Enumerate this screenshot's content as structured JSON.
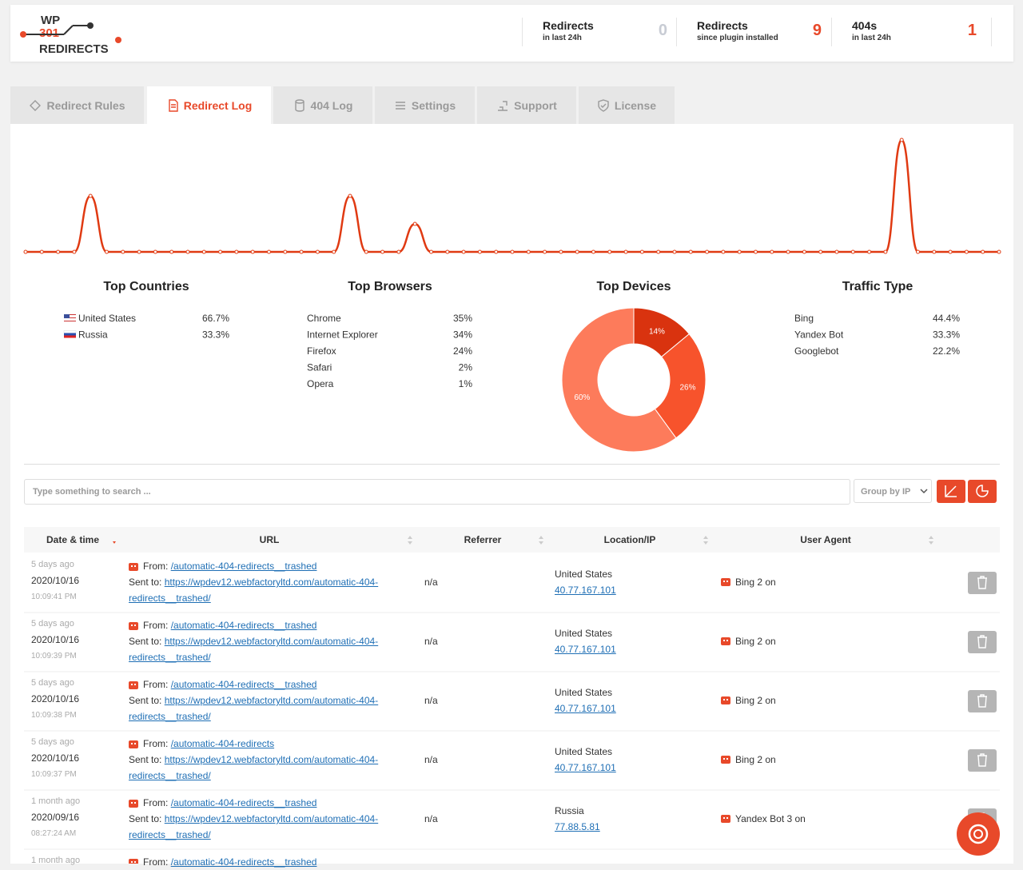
{
  "header": {
    "logo": [
      "WP",
      "301",
      "REDIRECTS"
    ],
    "stats": [
      {
        "label": "Redirects",
        "sublabel": "in last 24h",
        "value": "0"
      },
      {
        "label": "Redirects",
        "sublabel": "since plugin installed",
        "value": "9"
      },
      {
        "label": "404s",
        "sublabel": "in last 24h",
        "value": "1"
      }
    ]
  },
  "tabs": {
    "items": [
      "Redirect Rules",
      "Redirect Log",
      "404 Log",
      "Settings",
      "Support",
      "License"
    ],
    "active": 1
  },
  "chart_data": [
    {
      "type": "line",
      "color": "#e03a12",
      "values": [
        0,
        0,
        0,
        0,
        2,
        0,
        0,
        0,
        0,
        0,
        0,
        0,
        0,
        0,
        0,
        0,
        0,
        0,
        0,
        0,
        2,
        0,
        0,
        0,
        1,
        0,
        0,
        0,
        0,
        0,
        0,
        0,
        0,
        0,
        0,
        0,
        0,
        0,
        0,
        0,
        0,
        0,
        0,
        0,
        0,
        0,
        0,
        0,
        0,
        0,
        0,
        0,
        0,
        0,
        4,
        0,
        0,
        0,
        0,
        0,
        0
      ]
    },
    {
      "type": "pie",
      "title": "Top Devices",
      "values": [
        14,
        26,
        60
      ],
      "value_labels": [
        "14%",
        "26%",
        "60%"
      ],
      "colors": [
        "#d9330f",
        "#f7532c",
        "#fd7b5b"
      ]
    }
  ],
  "stats": [
    {
      "title": "Top Countries",
      "rows": [
        [
          "United States",
          "66.7%"
        ],
        [
          "Russia",
          "33.3%"
        ]
      ]
    },
    {
      "title": "Top Browsers",
      "rows": [
        [
          "Chrome",
          "35%"
        ],
        [
          "Internet Explorer",
          "34%"
        ],
        [
          "Firefox",
          "24%"
        ],
        [
          "Safari",
          "2%"
        ],
        [
          "Opera",
          "1%"
        ]
      ]
    },
    {
      "title": "Traffic Type",
      "rows": [
        [
          "Bing",
          "44.4%"
        ],
        [
          "Yandex Bot",
          "33.3%"
        ],
        [
          "Googlebot",
          "22.2%"
        ]
      ]
    }
  ],
  "search": {
    "placeholder": "Type something to search ...",
    "group": "Group by IP"
  },
  "table": {
    "columns": [
      "Date & time",
      "URL",
      "Referrer",
      "Location/IP",
      "User Agent"
    ],
    "from_label": "From:",
    "sent_label": "Sent to:",
    "rows": [
      {
        "ago": "5 days ago",
        "date": "2020/10/16",
        "time": "10:09:41 PM",
        "from": "/automatic-404-redirects__trashed",
        "to": "https://wpdev12.webfactoryltd.com/automatic-404-redirects__trashed/",
        "referrer": "n/a",
        "country": "United States",
        "ip": "40.77.167.101",
        "agent": "Bing 2 on"
      },
      {
        "ago": "5 days ago",
        "date": "2020/10/16",
        "time": "10:09:39 PM",
        "from": "/automatic-404-redirects__trashed",
        "to": "https://wpdev12.webfactoryltd.com/automatic-404-redirects__trashed/",
        "referrer": "n/a",
        "country": "United States",
        "ip": "40.77.167.101",
        "agent": "Bing 2 on"
      },
      {
        "ago": "5 days ago",
        "date": "2020/10/16",
        "time": "10:09:38 PM",
        "from": "/automatic-404-redirects__trashed",
        "to": "https://wpdev12.webfactoryltd.com/automatic-404-redirects__trashed/",
        "referrer": "n/a",
        "country": "United States",
        "ip": "40.77.167.101",
        "agent": "Bing 2 on"
      },
      {
        "ago": "5 days ago",
        "date": "2020/10/16",
        "time": "10:09:37 PM",
        "from": "/automatic-404-redirects",
        "to": "https://wpdev12.webfactoryltd.com/automatic-404-redirects__trashed/",
        "referrer": "n/a",
        "country": "United States",
        "ip": "40.77.167.101",
        "agent": "Bing 2 on"
      },
      {
        "ago": "1 month ago",
        "date": "2020/09/16",
        "time": "08:27:24 AM",
        "from": "/automatic-404-redirects__trashed",
        "to": "https://wpdev12.webfactoryltd.com/automatic-404-redirects__trashed/",
        "referrer": "n/a",
        "country": "Russia",
        "ip": "77.88.5.81",
        "agent": "Yandex Bot 3 on"
      },
      {
        "ago": "1 month ago",
        "from": "/automatic-404-redirects__trashed"
      }
    ]
  }
}
